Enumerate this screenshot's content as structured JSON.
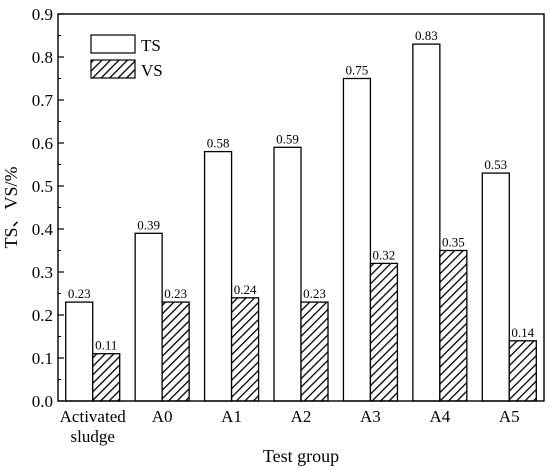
{
  "chart_data": {
    "type": "bar",
    "categories": [
      "Activated sludge",
      "A0",
      "A1",
      "A2",
      "A3",
      "A4",
      "A5"
    ],
    "category_lines": [
      [
        "Activated",
        "sludge"
      ],
      [
        "A0"
      ],
      [
        "A1"
      ],
      [
        "A2"
      ],
      [
        "A3"
      ],
      [
        "A4"
      ],
      [
        "A5"
      ]
    ],
    "series": [
      {
        "name": "TS",
        "values": [
          0.23,
          0.39,
          0.58,
          0.59,
          0.75,
          0.83,
          0.53
        ],
        "labels": [
          "0.23",
          "0.39",
          "0.58",
          "0.59",
          "0.75",
          "0.83",
          "0.53"
        ],
        "fill": "white"
      },
      {
        "name": "VS",
        "values": [
          0.11,
          0.23,
          0.24,
          0.23,
          0.32,
          0.35,
          0.14
        ],
        "labels": [
          "0.11",
          "0.23",
          "0.24",
          "0.23",
          "0.32",
          "0.35",
          "0.14"
        ],
        "fill": "hatched"
      }
    ],
    "xlabel": "Test group",
    "ylabel": "TS、VS/%",
    "ylim": [
      0,
      0.9
    ],
    "yticks": [
      "0.0",
      "0.1",
      "0.2",
      "0.3",
      "0.4",
      "0.5",
      "0.6",
      "0.7",
      "0.8",
      "0.9"
    ],
    "grid": false,
    "legend_position": "top-left"
  },
  "colors": {
    "axis": "#000000",
    "bar_stroke": "#000000",
    "ts_fill": "#ffffff",
    "hatch": "#000000"
  }
}
